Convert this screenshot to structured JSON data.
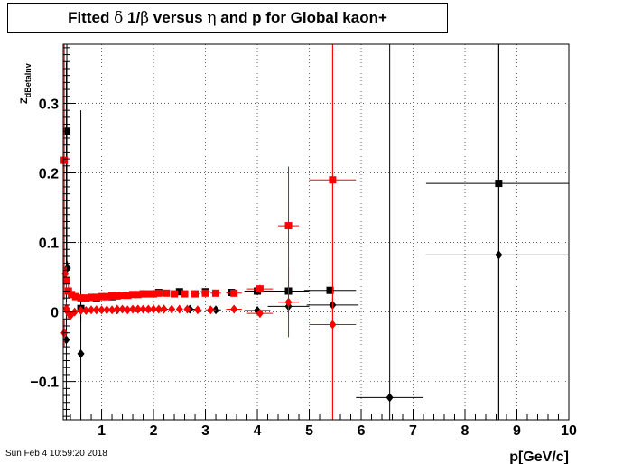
{
  "title": {
    "pre": "Fitted ",
    "delta": "δ",
    "mid": " 1/",
    "beta": "β",
    "post": " versus ",
    "eta": "η",
    "tail": " and p for Global kaon+"
  },
  "timestamp": "Sun Feb  4 10:59:20 2018",
  "chart_data": {
    "type": "scatter",
    "title": "Fitted δ 1/β versus η and p for Global kaon+",
    "xlabel": "p[GeV/c]",
    "ylabel": "Z_dBetaInv",
    "xlim": [
      0.26,
      10.0
    ],
    "ylim": [
      -0.155,
      0.385
    ],
    "grid": true,
    "xticks": [
      1,
      2,
      3,
      4,
      5,
      6,
      7,
      8,
      9,
      10
    ],
    "yticks": [
      -0.1,
      0,
      0.1,
      0.2,
      0.3
    ],
    "ytick_labels": [
      "−0.1",
      "0",
      "0.1",
      "0.2",
      "0.3"
    ],
    "series": [
      {
        "marker": "square",
        "color": "#000000",
        "points": [
          {
            "x": 0.33,
            "y": 0.26,
            "xe": 0.02,
            "ye": 0.2
          },
          {
            "x": 0.6,
            "y": 0.005,
            "xe": 0.03,
            "ye": 0.02
          },
          {
            "x": 0.9,
            "y": 0.02,
            "xe": 0.05,
            "ye": 0.003
          },
          {
            "x": 1.2,
            "y": 0.022,
            "xe": 0.05,
            "ye": 0.003
          },
          {
            "x": 1.5,
            "y": 0.024,
            "xe": 0.05,
            "ye": 0.003
          },
          {
            "x": 1.8,
            "y": 0.026,
            "xe": 0.05,
            "ye": 0.003
          },
          {
            "x": 2.1,
            "y": 0.028,
            "xe": 0.05,
            "ye": 0.003
          },
          {
            "x": 2.5,
            "y": 0.029,
            "xe": 0.1,
            "ye": 0.004
          },
          {
            "x": 3.0,
            "y": 0.029,
            "xe": 0.1,
            "ye": 0.004
          },
          {
            "x": 3.5,
            "y": 0.028,
            "xe": 0.1,
            "ye": 0.005
          },
          {
            "x": 4.0,
            "y": 0.03,
            "xe": 0.25,
            "ye": 0.006
          },
          {
            "x": 4.6,
            "y": 0.03,
            "xe": 0.4,
            "ye": 0.008
          },
          {
            "x": 5.4,
            "y": 0.031,
            "xe": 0.5,
            "ye": 0.01
          },
          {
            "x": 8.65,
            "y": 0.185,
            "xe": 1.4,
            "ye": 0.7
          }
        ]
      },
      {
        "marker": "diamond",
        "color": "#000000",
        "points": [
          {
            "x": 0.32,
            "y": -0.04,
            "xe": 0.02,
            "ye": 0.4
          },
          {
            "x": 0.34,
            "y": 0.063,
            "xe": 0.02,
            "ye": 0.01
          },
          {
            "x": 0.6,
            "y": -0.06,
            "xe": 0.03,
            "ye": 0.35
          },
          {
            "x": 0.9,
            "y": 0.003,
            "xe": 0.05,
            "ye": 0.003
          },
          {
            "x": 1.3,
            "y": 0.003,
            "xe": 0.05,
            "ye": 0.003
          },
          {
            "x": 1.7,
            "y": 0.004,
            "xe": 0.05,
            "ye": 0.003
          },
          {
            "x": 2.2,
            "y": 0.004,
            "xe": 0.08,
            "ye": 0.003
          },
          {
            "x": 2.7,
            "y": 0.004,
            "xe": 0.1,
            "ye": 0.003
          },
          {
            "x": 3.2,
            "y": 0.003,
            "xe": 0.1,
            "ye": 0.004
          },
          {
            "x": 4.0,
            "y": 0.002,
            "xe": 0.25,
            "ye": 0.006
          },
          {
            "x": 4.6,
            "y": 0.008,
            "xe": 0.4,
            "ye": 0.008
          },
          {
            "x": 5.45,
            "y": 0.01,
            "xe": 0.5,
            "ye": 0.01
          },
          {
            "x": 6.55,
            "y": -0.123,
            "xe": 0.65,
            "ye": 0.6
          },
          {
            "x": 8.65,
            "y": 0.082,
            "xe": 1.4,
            "ye": 0.6
          }
        ]
      },
      {
        "marker": "square",
        "color": "#ff0000",
        "points": [
          {
            "x": 0.28,
            "y": 0.218,
            "xe": 0.01,
            "ye": 0.2
          },
          {
            "x": 0.32,
            "y": 0.045,
            "xe": 0.01,
            "ye": 0.02
          },
          {
            "x": 0.36,
            "y": 0.03,
            "xe": 0.01,
            "ye": 0.01
          },
          {
            "x": 0.42,
            "y": 0.025,
            "xe": 0.02,
            "ye": 0.005
          },
          {
            "x": 0.5,
            "y": 0.022,
            "xe": 0.02,
            "ye": 0.003
          },
          {
            "x": 0.6,
            "y": 0.02,
            "xe": 0.02,
            "ye": 0.003
          },
          {
            "x": 0.7,
            "y": 0.02,
            "xe": 0.03,
            "ye": 0.003
          },
          {
            "x": 0.8,
            "y": 0.021,
            "xe": 0.03,
            "ye": 0.003
          },
          {
            "x": 0.9,
            "y": 0.021,
            "xe": 0.03,
            "ye": 0.003
          },
          {
            "x": 1.0,
            "y": 0.022,
            "xe": 0.03,
            "ye": 0.003
          },
          {
            "x": 1.1,
            "y": 0.022,
            "xe": 0.03,
            "ye": 0.003
          },
          {
            "x": 1.2,
            "y": 0.023,
            "xe": 0.03,
            "ye": 0.003
          },
          {
            "x": 1.3,
            "y": 0.023,
            "xe": 0.03,
            "ye": 0.003
          },
          {
            "x": 1.4,
            "y": 0.024,
            "xe": 0.03,
            "ye": 0.003
          },
          {
            "x": 1.5,
            "y": 0.024,
            "xe": 0.03,
            "ye": 0.003
          },
          {
            "x": 1.6,
            "y": 0.025,
            "xe": 0.03,
            "ye": 0.003
          },
          {
            "x": 1.7,
            "y": 0.025,
            "xe": 0.03,
            "ye": 0.003
          },
          {
            "x": 1.8,
            "y": 0.026,
            "xe": 0.03,
            "ye": 0.003
          },
          {
            "x": 1.9,
            "y": 0.026,
            "xe": 0.03,
            "ye": 0.003
          },
          {
            "x": 2.0,
            "y": 0.026,
            "xe": 0.03,
            "ye": 0.003
          },
          {
            "x": 2.1,
            "y": 0.027,
            "xe": 0.03,
            "ye": 0.003
          },
          {
            "x": 2.25,
            "y": 0.027,
            "xe": 0.05,
            "ye": 0.003
          },
          {
            "x": 2.4,
            "y": 0.026,
            "xe": 0.05,
            "ye": 0.003
          },
          {
            "x": 2.6,
            "y": 0.026,
            "xe": 0.05,
            "ye": 0.003
          },
          {
            "x": 2.8,
            "y": 0.026,
            "xe": 0.08,
            "ye": 0.003
          },
          {
            "x": 3.0,
            "y": 0.027,
            "xe": 0.08,
            "ye": 0.004
          },
          {
            "x": 3.2,
            "y": 0.027,
            "xe": 0.1,
            "ye": 0.004
          },
          {
            "x": 3.55,
            "y": 0.027,
            "xe": 0.15,
            "ye": 0.005
          },
          {
            "x": 4.05,
            "y": 0.033,
            "xe": 0.25,
            "ye": 0.006
          },
          {
            "x": 4.6,
            "y": 0.124,
            "xe": 0.2,
            "ye": 0.085
          },
          {
            "x": 5.45,
            "y": 0.19,
            "xe": 0.45,
            "ye": 0.5
          }
        ]
      },
      {
        "marker": "diamond",
        "color": "#ff0000",
        "points": [
          {
            "x": 0.28,
            "y": -0.03,
            "xe": 0.01,
            "ye": 0.02
          },
          {
            "x": 0.3,
            "y": 0.055,
            "xe": 0.01,
            "ye": 0.01
          },
          {
            "x": 0.32,
            "y": 0.005,
            "xe": 0.01,
            "ye": 0.01
          },
          {
            "x": 0.35,
            "y": 0.0,
            "xe": 0.01,
            "ye": 0.01
          },
          {
            "x": 0.4,
            "y": -0.005,
            "xe": 0.02,
            "ye": 0.005
          },
          {
            "x": 0.48,
            "y": 0.0,
            "xe": 0.02,
            "ye": 0.003
          },
          {
            "x": 0.6,
            "y": 0.002,
            "xe": 0.02,
            "ye": 0.003
          },
          {
            "x": 0.7,
            "y": 0.002,
            "xe": 0.03,
            "ye": 0.003
          },
          {
            "x": 0.8,
            "y": 0.003,
            "xe": 0.03,
            "ye": 0.003
          },
          {
            "x": 0.9,
            "y": 0.003,
            "xe": 0.03,
            "ye": 0.003
          },
          {
            "x": 1.0,
            "y": 0.003,
            "xe": 0.03,
            "ye": 0.003
          },
          {
            "x": 1.1,
            "y": 0.003,
            "xe": 0.03,
            "ye": 0.003
          },
          {
            "x": 1.2,
            "y": 0.003,
            "xe": 0.03,
            "ye": 0.003
          },
          {
            "x": 1.3,
            "y": 0.004,
            "xe": 0.03,
            "ye": 0.003
          },
          {
            "x": 1.4,
            "y": 0.004,
            "xe": 0.03,
            "ye": 0.003
          },
          {
            "x": 1.5,
            "y": 0.003,
            "xe": 0.03,
            "ye": 0.003
          },
          {
            "x": 1.6,
            "y": 0.004,
            "xe": 0.03,
            "ye": 0.003
          },
          {
            "x": 1.7,
            "y": 0.004,
            "xe": 0.03,
            "ye": 0.003
          },
          {
            "x": 1.8,
            "y": 0.004,
            "xe": 0.03,
            "ye": 0.003
          },
          {
            "x": 1.9,
            "y": 0.004,
            "xe": 0.03,
            "ye": 0.003
          },
          {
            "x": 2.0,
            "y": 0.004,
            "xe": 0.03,
            "ye": 0.003
          },
          {
            "x": 2.1,
            "y": 0.004,
            "xe": 0.03,
            "ye": 0.003
          },
          {
            "x": 2.2,
            "y": 0.004,
            "xe": 0.05,
            "ye": 0.003
          },
          {
            "x": 2.35,
            "y": 0.004,
            "xe": 0.05,
            "ye": 0.003
          },
          {
            "x": 2.5,
            "y": 0.004,
            "xe": 0.05,
            "ye": 0.003
          },
          {
            "x": 2.65,
            "y": 0.004,
            "xe": 0.05,
            "ye": 0.003
          },
          {
            "x": 2.85,
            "y": 0.003,
            "xe": 0.08,
            "ye": 0.003
          },
          {
            "x": 3.1,
            "y": 0.003,
            "xe": 0.1,
            "ye": 0.004
          },
          {
            "x": 3.55,
            "y": 0.004,
            "xe": 0.15,
            "ye": 0.005
          },
          {
            "x": 4.05,
            "y": -0.002,
            "xe": 0.25,
            "ye": 0.006
          },
          {
            "x": 4.6,
            "y": 0.014,
            "xe": 0.2,
            "ye": 0.05
          },
          {
            "x": 5.45,
            "y": -0.018,
            "xe": 0.45,
            "ye": 0.5
          }
        ]
      }
    ]
  }
}
